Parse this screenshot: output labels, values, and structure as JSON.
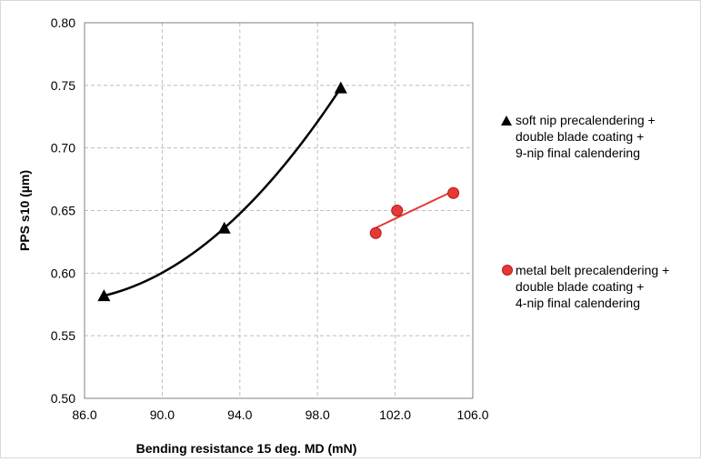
{
  "chart_data": {
    "type": "scatter",
    "xlabel": "Bending resistance  15 deg. MD (mN)",
    "ylabel": "PPS s10 (µm)",
    "xlim": [
      86.0,
      106.0
    ],
    "ylim": [
      0.5,
      0.8
    ],
    "x_ticks": [
      "86.0",
      "90.0",
      "94.0",
      "98.0",
      "102.0",
      "106.0"
    ],
    "y_ticks": [
      "0.50",
      "0.55",
      "0.60",
      "0.65",
      "0.70",
      "0.75",
      "0.80"
    ],
    "grid": true,
    "legend_position": "right",
    "series": [
      {
        "name": "soft nip precalendering +\ndouble blade coating  +\n9-nip final calendering",
        "marker": "triangle",
        "color": "#000000",
        "trendline": "polynomial",
        "points": [
          {
            "x": 87.0,
            "y": 0.582
          },
          {
            "x": 93.2,
            "y": 0.636
          },
          {
            "x": 99.2,
            "y": 0.748
          }
        ]
      },
      {
        "name": "metal belt precalendering +\ndouble blade coating +\n4-nip final calendering",
        "marker": "circle",
        "color": "#e53935",
        "trendline": "linear",
        "points": [
          {
            "x": 101.0,
            "y": 0.632
          },
          {
            "x": 102.1,
            "y": 0.65
          },
          {
            "x": 105.0,
            "y": 0.664
          }
        ]
      }
    ]
  }
}
